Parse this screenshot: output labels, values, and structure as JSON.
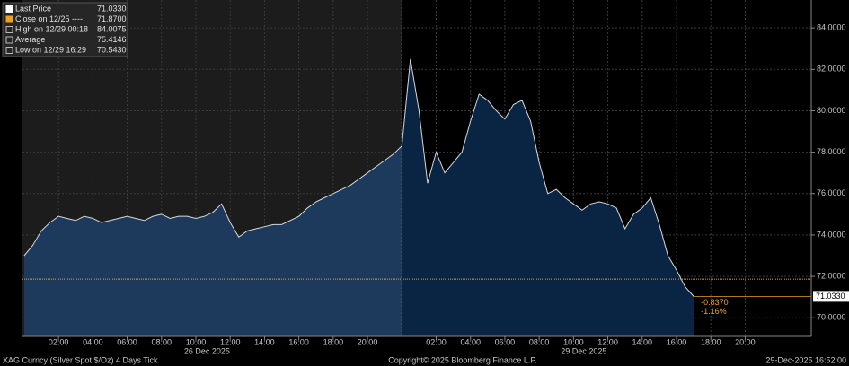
{
  "chart_data": {
    "type": "area",
    "title": "XAG Curncy (Silver Spot $/Oz) 4 Days Tick",
    "copyright": "Copyright© 2025 Bloomberg Finance L.P.",
    "timestamp": "29-Dec-2025 16:52:00",
    "series": [
      {
        "name": "Last Price",
        "color": "#d8d8d8",
        "area_colors": [
          "#1d3a5c",
          "#0a2543"
        ],
        "values": [
          73.0,
          73.5,
          74.2,
          74.6,
          74.9,
          74.8,
          74.7,
          74.9,
          74.8,
          74.6,
          74.7,
          74.8,
          74.9,
          74.8,
          74.7,
          74.9,
          75.0,
          74.8,
          74.9,
          74.9,
          74.8,
          74.9,
          75.1,
          75.5,
          74.6,
          73.9,
          74.2,
          74.3,
          74.4,
          74.5,
          74.5,
          74.7,
          74.9,
          75.3,
          75.6,
          75.8,
          76.0,
          76.2,
          76.4,
          76.7,
          77.0,
          77.3,
          77.6,
          77.9,
          78.3,
          82.5,
          80.0,
          76.5,
          78.0,
          77.0,
          77.5,
          78.0,
          79.5,
          80.8,
          80.5,
          80.0,
          79.6,
          80.3,
          80.5,
          79.5,
          77.5,
          76.0,
          76.2,
          75.8,
          75.5,
          75.2,
          75.5,
          75.6,
          75.5,
          75.3,
          74.3,
          75.0,
          75.3,
          75.8,
          74.5,
          73.0,
          72.3,
          71.5,
          71.033
        ]
      }
    ],
    "session_break": 44,
    "close": {
      "value": 71.87,
      "color": "#f0a020"
    },
    "legend": [
      {
        "label": "Last Price",
        "value": "71.0330",
        "color": "#ffffff"
      },
      {
        "label": "Close on 12/25 ----",
        "value": "71.8700",
        "color": "#f0a020"
      },
      {
        "label": "High on 12/29 00:18",
        "value": "84.0075",
        "color": "#bbbbbb"
      },
      {
        "label": "Average",
        "value": "75.4146",
        "color": "#bbbbbb"
      },
      {
        "label": "Low on 12/29 16:29",
        "value": "70.5430",
        "color": "#bbbbbb"
      }
    ],
    "change_labels": [
      "-0.8370",
      "-1.16%"
    ],
    "xlim": [
      -0.2,
      91.7
    ],
    "xticks": [
      {
        "value": 4,
        "label": "02:00"
      },
      {
        "value": 8,
        "label": "04:00"
      },
      {
        "value": 12,
        "label": "06:00"
      },
      {
        "value": 16,
        "label": "08:00"
      },
      {
        "value": 20,
        "label": "10:00"
      },
      {
        "value": 24,
        "label": "12:00"
      },
      {
        "value": 28,
        "label": "14:00"
      },
      {
        "value": 32,
        "label": "16:00"
      },
      {
        "value": 36,
        "label": "18:00"
      },
      {
        "value": 40,
        "label": "20:00"
      },
      {
        "value": 48,
        "label": "02:00"
      },
      {
        "value": 52,
        "label": "04:00"
      },
      {
        "value": 56,
        "label": "06:00"
      },
      {
        "value": 60,
        "label": "08:00"
      },
      {
        "value": 64,
        "label": "10:00"
      },
      {
        "value": 68,
        "label": "12:00"
      },
      {
        "value": 72,
        "label": "14:00"
      },
      {
        "value": 76,
        "label": "16:00"
      },
      {
        "value": 80,
        "label": "18:00"
      },
      {
        "value": 84,
        "label": "20:00"
      }
    ],
    "date_labels": [
      {
        "value": 21.3,
        "label": "26 Dec 2025"
      },
      {
        "value": 65.2,
        "label": "29 Dec 2025"
      }
    ],
    "ylim": [
      69.1,
      85.35
    ],
    "yticks": [
      {
        "value": 70,
        "label": "70.0000"
      },
      {
        "value": 72,
        "label": "72.0000"
      },
      {
        "value": 74,
        "label": "74.0000"
      },
      {
        "value": 76,
        "label": "76.0000"
      },
      {
        "value": 78,
        "label": "78.0000"
      },
      {
        "value": 80,
        "label": "80.0000"
      },
      {
        "value": 82,
        "label": "82.0000"
      },
      {
        "value": 84,
        "label": "84.0000"
      }
    ],
    "grid": true
  }
}
